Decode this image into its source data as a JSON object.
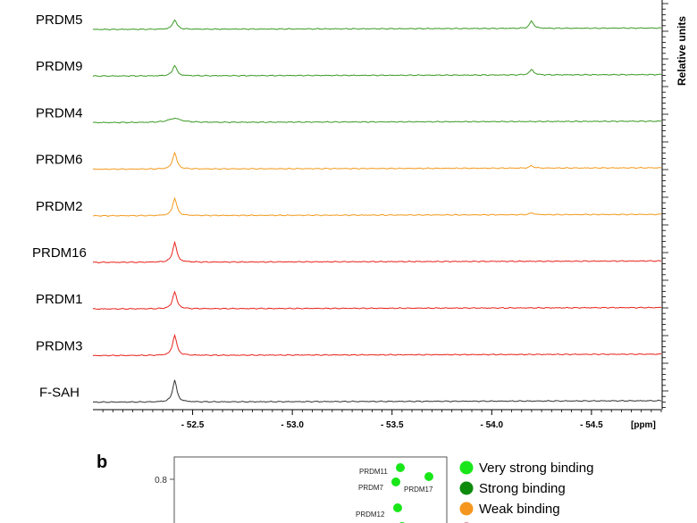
{
  "chart_data": [
    {
      "type": "line",
      "title": "",
      "xlabel": "[ppm]",
      "ylabel": "Relative units",
      "x_ticks": [
        "- 52.5",
        "- 53.0",
        "- 53.5",
        "- 54.0",
        "- 54.5"
      ],
      "x_tick_values": [
        -52.5,
        -53.0,
        -53.5,
        -54.0,
        -54.5
      ],
      "xlim": [
        -52.0,
        -54.85
      ],
      "series": [
        {
          "name": "PRDM5",
          "color": "#3a9a24",
          "peaks": [
            {
              "x": -52.41,
              "h": 0.9
            },
            {
              "x": -54.2,
              "h": 0.68
            }
          ]
        },
        {
          "name": "PRDM9",
          "color": "#3a9a24",
          "peaks": [
            {
              "x": -52.41,
              "h": 1.0
            },
            {
              "x": -54.2,
              "h": 0.52
            }
          ]
        },
        {
          "name": "PRDM4",
          "color": "#3a9a24",
          "peaks": [
            {
              "x": -52.41,
              "h": 0.38,
              "w": 3.2
            }
          ]
        },
        {
          "name": "PRDM6",
          "color": "#f39a1e",
          "peaks": [
            {
              "x": -52.41,
              "h": 1.55
            },
            {
              "x": -54.2,
              "h": 0.22
            }
          ]
        },
        {
          "name": "PRDM2",
          "color": "#f39a1e",
          "peaks": [
            {
              "x": -52.41,
              "h": 1.65
            },
            {
              "x": -54.2,
              "h": 0.18
            }
          ]
        },
        {
          "name": "PRDM16",
          "color": "#e8231b",
          "peaks": [
            {
              "x": -52.41,
              "h": 1.85
            }
          ]
        },
        {
          "name": "PRDM1",
          "color": "#e8231b",
          "peaks": [
            {
              "x": -52.41,
              "h": 1.6
            }
          ]
        },
        {
          "name": "PRDM3",
          "color": "#e8231b",
          "peaks": [
            {
              "x": -52.41,
              "h": 1.9
            }
          ]
        },
        {
          "name": "F-SAH",
          "color": "#333333",
          "peaks": [
            {
              "x": -52.41,
              "h": 2.05
            }
          ]
        }
      ]
    },
    {
      "type": "scatter",
      "title": "",
      "y_ticks": [
        "0.8"
      ],
      "points": [
        {
          "label": "PRDM11",
          "color": "#19e619"
        },
        {
          "label": "PRDM7",
          "color": "#19e619"
        },
        {
          "label": "PRDM17",
          "color": "#19e619"
        },
        {
          "label": "PRDM12",
          "color": "#19e619"
        }
      ],
      "legend": [
        {
          "label": "Very strong binding",
          "color": "#19e619"
        },
        {
          "label": "Strong binding",
          "color": "#0c8a0c"
        },
        {
          "label": "Weak binding",
          "color": "#f5971e"
        },
        {
          "label": "",
          "color": "#a0193c"
        }
      ]
    }
  ],
  "panel_b_label": "b"
}
